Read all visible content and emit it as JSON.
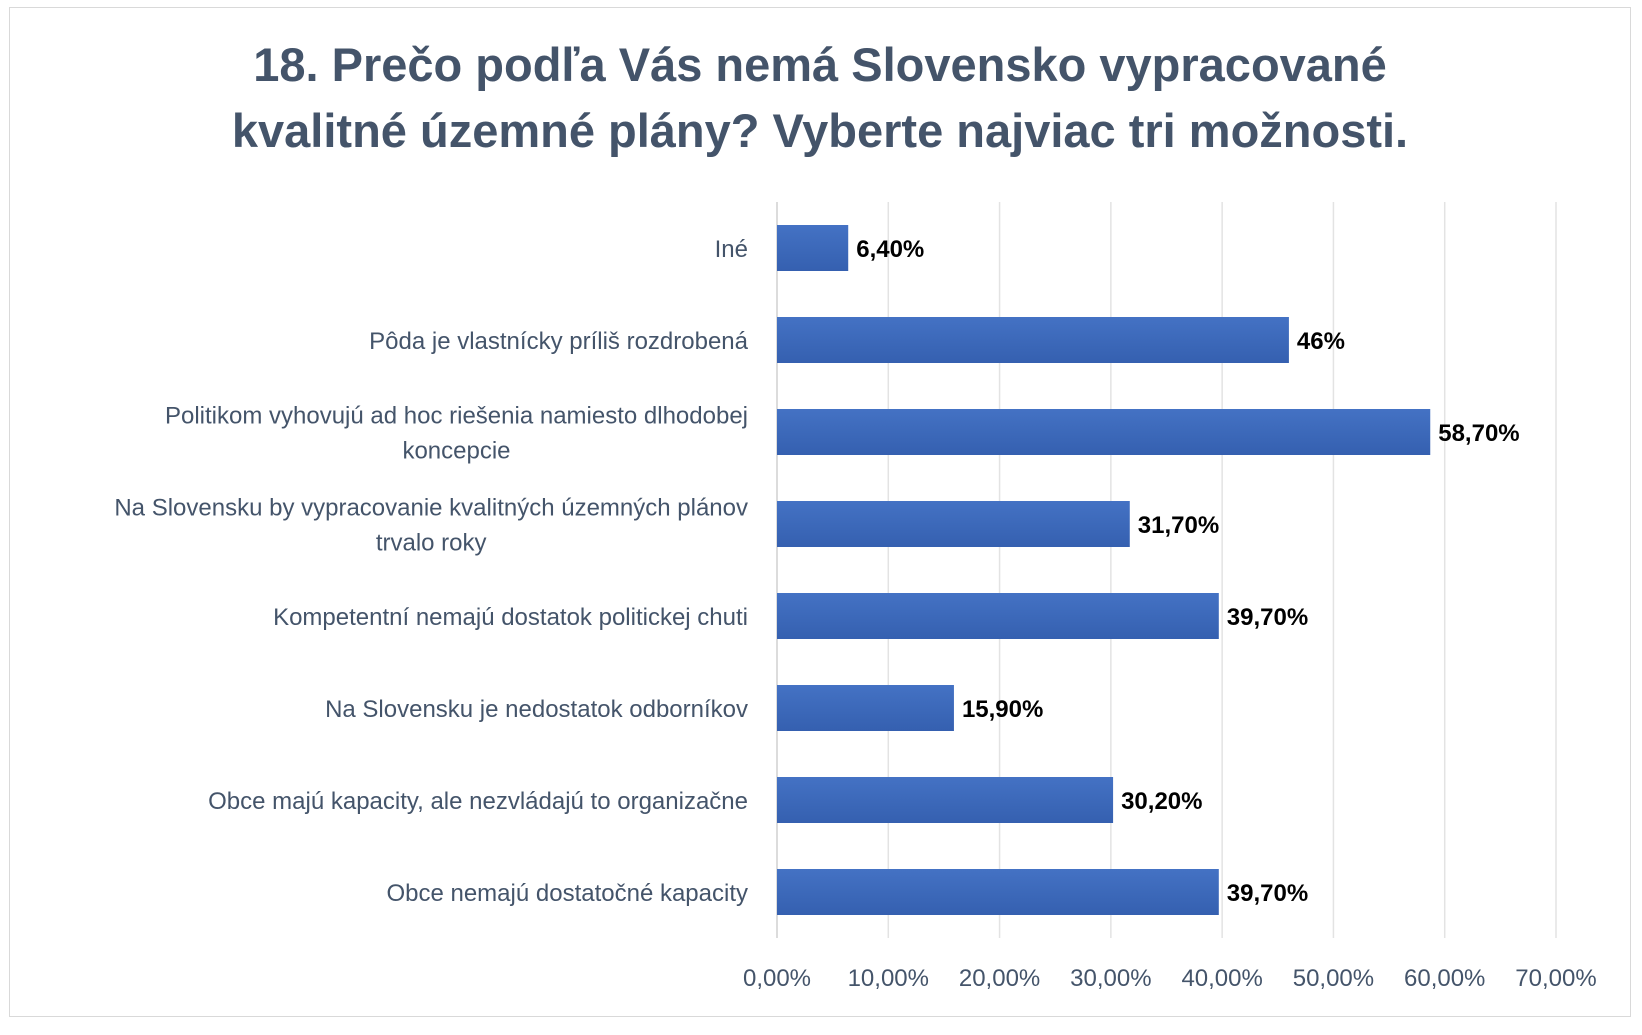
{
  "chart_data": {
    "type": "bar",
    "orientation": "horizontal",
    "title_lines": [
      "18. Prečo podľa Vás nemá Slovensko vypracované",
      "kvalitné územné plány? Vyberte najviac tri možnosti."
    ],
    "categories": [
      [
        "Iné"
      ],
      [
        "Pôda je vlastnícky príliš rozdrobená"
      ],
      [
        "Politikom vyhovujú ad hoc riešenia namiesto dlhodobej",
        "koncepcie"
      ],
      [
        "Na Slovensku by vypracovanie kvalitných územných plánov",
        "trvalo roky"
      ],
      [
        "Kompetentní nemajú dostatok politickej chuti"
      ],
      [
        "Na Slovensku je nedostatok odborníkov"
      ],
      [
        "Obce majú kapacity, ale nezvládajú to organizačne"
      ],
      [
        "Obce nemajú dostatočné kapacity"
      ]
    ],
    "values": [
      6.4,
      46,
      58.7,
      31.7,
      39.7,
      15.9,
      30.2,
      39.7
    ],
    "data_labels": [
      "6,40%",
      "46%",
      "58,70%",
      "31,70%",
      "39,70%",
      "15,90%",
      "30,20%",
      "39,70%"
    ],
    "xlim": [
      0,
      70
    ],
    "ticks": [
      0,
      10,
      20,
      30,
      40,
      50,
      60,
      70
    ],
    "tick_labels": [
      "0,00%",
      "10,00%",
      "20,00%",
      "30,00%",
      "40,00%",
      "50,00%",
      "60,00%",
      "70,00%"
    ],
    "xlabel": "",
    "ylabel": "",
    "grid": true,
    "legend": "none",
    "bar_color": "#4472c4",
    "bar_color_dark": "#3560b0",
    "grid_color": "#e3e3e3",
    "text_color": "#44546a"
  }
}
